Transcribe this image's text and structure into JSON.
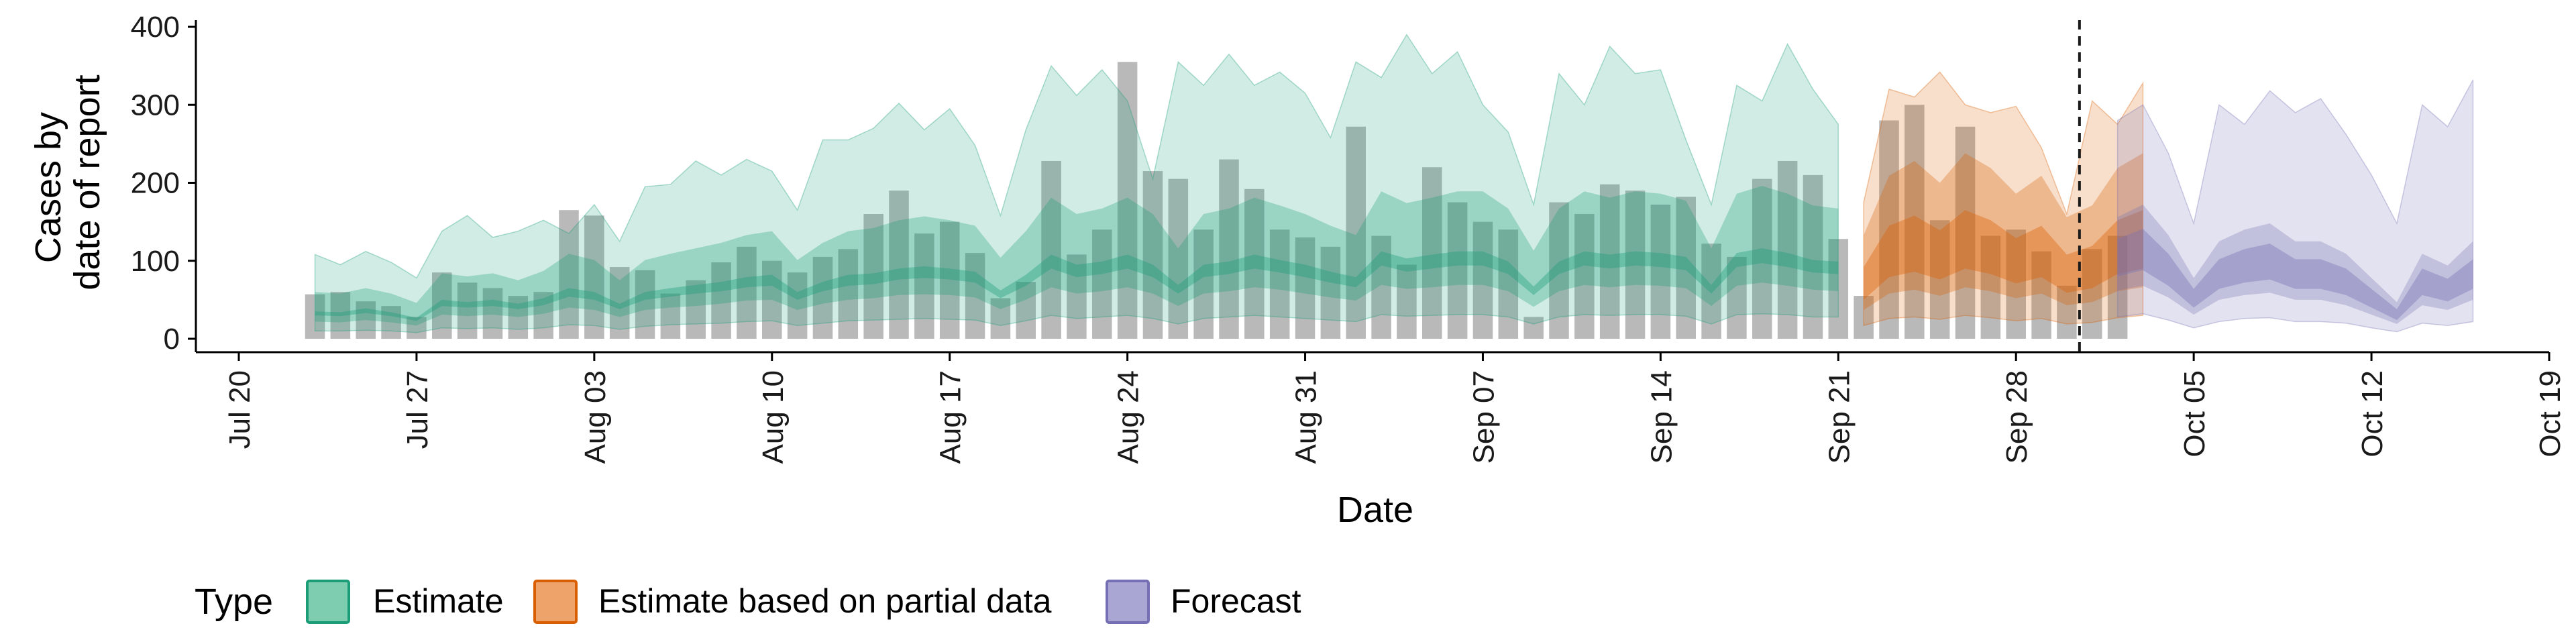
{
  "chart_data": {
    "type": "area",
    "title": "",
    "xlabel": "Date",
    "ylabel_lines": [
      "Cases by",
      "date of report"
    ],
    "ylim": [
      0,
      400
    ],
    "yticks": [
      0,
      100,
      200,
      300,
      400
    ],
    "xlim": [
      "2020-07-20",
      "2020-10-19"
    ],
    "xticks": [
      {
        "date": "2020-07-20",
        "label": "Jul 20"
      },
      {
        "date": "2020-07-27",
        "label": "Jul 27"
      },
      {
        "date": "2020-08-03",
        "label": "Aug 03"
      },
      {
        "date": "2020-08-10",
        "label": "Aug 10"
      },
      {
        "date": "2020-08-17",
        "label": "Aug 17"
      },
      {
        "date": "2020-08-24",
        "label": "Aug 24"
      },
      {
        "date": "2020-08-31",
        "label": "Aug 31"
      },
      {
        "date": "2020-09-07",
        "label": "Sep 07"
      },
      {
        "date": "2020-09-14",
        "label": "Sep 14"
      },
      {
        "date": "2020-09-21",
        "label": "Sep 21"
      },
      {
        "date": "2020-09-28",
        "label": "Sep 28"
      },
      {
        "date": "2020-10-05",
        "label": "Oct 05"
      },
      {
        "date": "2020-10-12",
        "label": "Oct 12"
      },
      {
        "date": "2020-10-19",
        "label": "Oct 19"
      }
    ],
    "vline_date": "2020-10-01",
    "bar_color": "#9e9e9e",
    "observed": {
      "start_date": "2020-07-23",
      "cases": [
        57,
        60,
        48,
        42,
        28,
        85,
        72,
        65,
        55,
        60,
        165,
        158,
        92,
        88,
        58,
        75,
        98,
        118,
        100,
        85,
        105,
        115,
        160,
        190,
        135,
        150,
        110,
        52,
        73,
        228,
        108,
        140,
        355,
        215,
        205,
        140,
        230,
        192,
        140,
        130,
        118,
        272,
        132,
        95,
        220,
        175,
        150,
        140,
        28,
        175,
        160,
        198,
        190,
        172,
        182,
        122,
        105,
        205,
        228,
        210,
        128,
        55,
        280,
        300,
        152,
        272,
        132,
        140,
        112,
        68,
        115,
        132
      ]
    },
    "legend_title": "Type",
    "legend": [
      {
        "label": "Estimate",
        "fill": "#7fcdb1",
        "stroke": "#1b9e77"
      },
      {
        "label": "Estimate based on partial data",
        "fill": "#eea36a",
        "stroke": "#d95f02"
      },
      {
        "label": "Forecast",
        "fill": "#aaa6d4",
        "stroke": "#7570b3"
      }
    ],
    "series": [
      {
        "name": "Estimate",
        "color": "#1b9e77",
        "start_date": "2020-07-23",
        "median": [
          42,
          40,
          45,
          40,
          32,
          58,
          55,
          58,
          52,
          60,
          75,
          70,
          52,
          70,
          75,
          80,
          85,
          92,
          95,
          70,
          85,
          95,
          98,
          105,
          108,
          105,
          100,
          72,
          95,
          125,
          110,
          115,
          125,
          110,
          80,
          110,
          115,
          125,
          118,
          110,
          100,
          92,
          130,
          120,
          125,
          130,
          130,
          115,
          78,
          115,
          130,
          125,
          130,
          128,
          122,
          80,
          128,
          135,
          128,
          118,
          115
        ],
        "inner": [
          [
            30,
            35
          ],
          [
            29,
            34
          ],
          [
            33,
            39
          ],
          [
            29,
            34
          ],
          [
            23,
            27
          ],
          [
            42,
            50
          ],
          [
            40,
            47
          ],
          [
            42,
            50
          ],
          [
            38,
            45
          ],
          [
            43,
            52
          ],
          [
            54,
            65
          ],
          [
            50,
            60
          ],
          [
            38,
            45
          ],
          [
            50,
            60
          ],
          [
            54,
            65
          ],
          [
            58,
            69
          ],
          [
            61,
            73
          ],
          [
            66,
            79
          ],
          [
            68,
            82
          ],
          [
            50,
            60
          ],
          [
            61,
            73
          ],
          [
            68,
            82
          ],
          [
            70,
            84
          ],
          [
            76,
            90
          ],
          [
            78,
            93
          ],
          [
            76,
            90
          ],
          [
            72,
            86
          ],
          [
            52,
            62
          ],
          [
            68,
            82
          ],
          [
            90,
            108
          ],
          [
            79,
            95
          ],
          [
            83,
            99
          ],
          [
            90,
            108
          ],
          [
            79,
            95
          ],
          [
            58,
            69
          ],
          [
            79,
            95
          ],
          [
            83,
            99
          ],
          [
            90,
            108
          ],
          [
            85,
            101
          ],
          [
            79,
            95
          ],
          [
            72,
            86
          ],
          [
            66,
            79
          ],
          [
            94,
            112
          ],
          [
            86,
            103
          ],
          [
            90,
            108
          ],
          [
            94,
            112
          ],
          [
            94,
            112
          ],
          [
            83,
            99
          ],
          [
            56,
            67
          ],
          [
            83,
            99
          ],
          [
            94,
            112
          ],
          [
            90,
            108
          ],
          [
            94,
            112
          ],
          [
            92,
            110
          ],
          [
            88,
            105
          ],
          [
            58,
            69
          ],
          [
            92,
            110
          ],
          [
            97,
            116
          ],
          [
            92,
            110
          ],
          [
            85,
            101
          ],
          [
            83,
            99
          ]
        ],
        "mid": [
          [
            22,
            60
          ],
          [
            21,
            58
          ],
          [
            24,
            65
          ],
          [
            21,
            58
          ],
          [
            17,
            46
          ],
          [
            31,
            84
          ],
          [
            29,
            80
          ],
          [
            31,
            84
          ],
          [
            28,
            75
          ],
          [
            32,
            87
          ],
          [
            40,
            109
          ],
          [
            37,
            101
          ],
          [
            28,
            75
          ],
          [
            37,
            101
          ],
          [
            40,
            109
          ],
          [
            42,
            116
          ],
          [
            45,
            123
          ],
          [
            49,
            133
          ],
          [
            50,
            138
          ],
          [
            37,
            101
          ],
          [
            45,
            123
          ],
          [
            50,
            138
          ],
          [
            52,
            142
          ],
          [
            56,
            152
          ],
          [
            57,
            157
          ],
          [
            56,
            152
          ],
          [
            53,
            145
          ],
          [
            38,
            104
          ],
          [
            50,
            138
          ],
          [
            66,
            181
          ],
          [
            58,
            160
          ],
          [
            61,
            167
          ],
          [
            66,
            181
          ],
          [
            58,
            160
          ],
          [
            42,
            116
          ],
          [
            58,
            160
          ],
          [
            61,
            167
          ],
          [
            66,
            181
          ],
          [
            63,
            171
          ],
          [
            58,
            160
          ],
          [
            53,
            145
          ],
          [
            49,
            133
          ],
          [
            69,
            189
          ],
          [
            64,
            174
          ],
          [
            66,
            181
          ],
          [
            69,
            189
          ],
          [
            69,
            189
          ],
          [
            61,
            167
          ],
          [
            41,
            113
          ],
          [
            61,
            167
          ],
          [
            69,
            189
          ],
          [
            66,
            181
          ],
          [
            69,
            189
          ],
          [
            68,
            186
          ],
          [
            65,
            177
          ],
          [
            42,
            116
          ],
          [
            68,
            186
          ],
          [
            72,
            196
          ],
          [
            68,
            186
          ],
          [
            63,
            171
          ],
          [
            61,
            167
          ]
        ],
        "outer": [
          [
            10,
            108
          ],
          [
            10,
            95
          ],
          [
            11,
            112
          ],
          [
            10,
            98
          ],
          [
            8,
            78
          ],
          [
            14,
            138
          ],
          [
            13,
            158
          ],
          [
            14,
            130
          ],
          [
            12,
            138
          ],
          [
            14,
            152
          ],
          [
            18,
            135
          ],
          [
            17,
            172
          ],
          [
            12,
            125
          ],
          [
            16,
            195
          ],
          [
            18,
            198
          ],
          [
            19,
            228
          ],
          [
            20,
            210
          ],
          [
            22,
            230
          ],
          [
            23,
            215
          ],
          [
            17,
            165
          ],
          [
            20,
            255
          ],
          [
            23,
            255
          ],
          [
            24,
            270
          ],
          [
            25,
            302
          ],
          [
            26,
            268
          ],
          [
            25,
            295
          ],
          [
            24,
            248
          ],
          [
            17,
            158
          ],
          [
            23,
            268
          ],
          [
            30,
            350
          ],
          [
            26,
            312
          ],
          [
            28,
            345
          ],
          [
            30,
            305
          ],
          [
            26,
            205
          ],
          [
            19,
            355
          ],
          [
            26,
            325
          ],
          [
            28,
            365
          ],
          [
            30,
            325
          ],
          [
            28,
            342
          ],
          [
            26,
            315
          ],
          [
            24,
            258
          ],
          [
            22,
            355
          ],
          [
            31,
            335
          ],
          [
            29,
            390
          ],
          [
            30,
            340
          ],
          [
            31,
            368
          ],
          [
            31,
            300
          ],
          [
            28,
            265
          ],
          [
            19,
            172
          ],
          [
            28,
            340
          ],
          [
            31,
            300
          ],
          [
            30,
            375
          ],
          [
            31,
            340
          ],
          [
            31,
            345
          ],
          [
            29,
            255
          ],
          [
            19,
            172
          ],
          [
            31,
            325
          ],
          [
            32,
            305
          ],
          [
            31,
            378
          ],
          [
            28,
            320
          ],
          [
            28,
            275
          ]
        ]
      },
      {
        "name": "Estimate based on partial data",
        "color": "#d95f02",
        "start_date": "2020-09-22",
        "median": [
          70,
          110,
          120,
          105,
          125,
          115,
          98,
          110,
          82,
          90,
          115,
          125
        ],
        "inner": [
          [
            50,
            92
          ],
          [
            79,
            145
          ],
          [
            86,
            158
          ],
          [
            76,
            139
          ],
          [
            90,
            165
          ],
          [
            83,
            152
          ],
          [
            71,
            129
          ],
          [
            79,
            145
          ],
          [
            59,
            108
          ],
          [
            65,
            119
          ],
          [
            83,
            152
          ],
          [
            90,
            165
          ]
        ],
        "mid": [
          [
            37,
            133
          ],
          [
            58,
            209
          ],
          [
            63,
            228
          ],
          [
            55,
            200
          ],
          [
            66,
            238
          ],
          [
            61,
            219
          ],
          [
            52,
            186
          ],
          [
            58,
            209
          ],
          [
            43,
            156
          ],
          [
            47,
            171
          ],
          [
            61,
            219
          ],
          [
            66,
            238
          ]
        ],
        "outer": [
          [
            17,
            175
          ],
          [
            26,
            320
          ],
          [
            28,
            310
          ],
          [
            25,
            342
          ],
          [
            30,
            300
          ],
          [
            27,
            290
          ],
          [
            23,
            298
          ],
          [
            26,
            245
          ],
          [
            19,
            160
          ],
          [
            21,
            305
          ],
          [
            27,
            275
          ],
          [
            30,
            328
          ]
        ]
      },
      {
        "name": "Forecast",
        "color": "#7570b3",
        "start_date": "2020-10-02",
        "median": [
          100,
          110,
          85,
          50,
          80,
          90,
          95,
          80,
          80,
          70,
          50,
          30,
          70,
          60,
          80
        ],
        "inner": [
          [
            80,
            128
          ],
          [
            88,
            141
          ],
          [
            68,
            109
          ],
          [
            40,
            64
          ],
          [
            64,
            102
          ],
          [
            72,
            115
          ],
          [
            76,
            122
          ],
          [
            64,
            102
          ],
          [
            64,
            102
          ],
          [
            56,
            90
          ],
          [
            40,
            64
          ],
          [
            24,
            38
          ],
          [
            56,
            90
          ],
          [
            48,
            77
          ],
          [
            64,
            102
          ]
        ],
        "mid": [
          [
            62,
            156
          ],
          [
            68,
            172
          ],
          [
            53,
            133
          ],
          [
            31,
            78
          ],
          [
            50,
            125
          ],
          [
            56,
            140
          ],
          [
            59,
            148
          ],
          [
            50,
            125
          ],
          [
            50,
            125
          ],
          [
            43,
            109
          ],
          [
            31,
            78
          ],
          [
            19,
            47
          ],
          [
            43,
            109
          ],
          [
            37,
            94
          ],
          [
            50,
            125
          ]
        ],
        "outer": [
          [
            28,
            280
          ],
          [
            32,
            300
          ],
          [
            24,
            238
          ],
          [
            14,
            148
          ],
          [
            22,
            300
          ],
          [
            26,
            275
          ],
          [
            27,
            318
          ],
          [
            22,
            290
          ],
          [
            22,
            308
          ],
          [
            20,
            262
          ],
          [
            14,
            210
          ],
          [
            9,
            148
          ],
          [
            20,
            300
          ],
          [
            17,
            272
          ],
          [
            22,
            332
          ]
        ]
      }
    ]
  }
}
